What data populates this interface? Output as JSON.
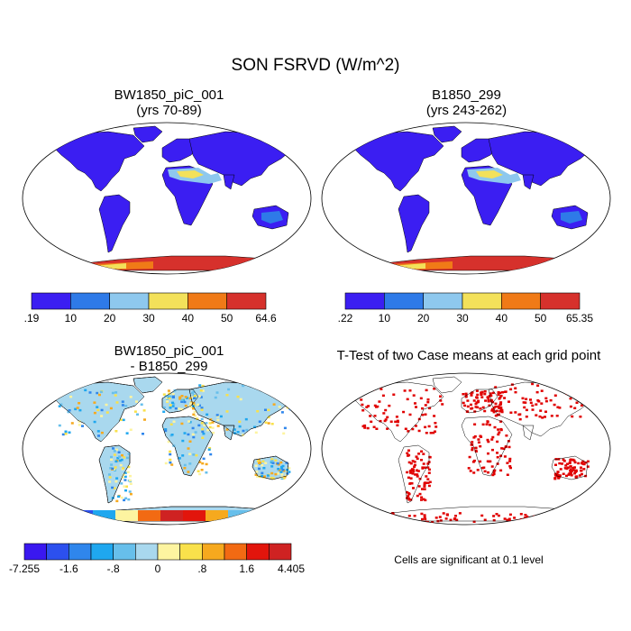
{
  "figure": {
    "title": "SON FSRVD (W/m^2)",
    "panels": [
      {
        "id": "case1",
        "title_line1": "BW1850_piC_001",
        "title_line2": "(yrs 70-89)",
        "colorbar": {
          "colors": [
            "#3b1ef2",
            "#2e7ae8",
            "#8ec8ee",
            "#f3e15a",
            "#f07a17",
            "#d6312c"
          ],
          "labels": [
            ".19",
            "10",
            "20",
            "30",
            "40",
            "50",
            "64.6"
          ]
        }
      },
      {
        "id": "case2",
        "title_line1": "B1850_299",
        "title_line2": "(yrs 243-262)",
        "colorbar": {
          "colors": [
            "#3b1ef2",
            "#2e7ae8",
            "#8ec8ee",
            "#f3e15a",
            "#f07a17",
            "#d6312c"
          ],
          "labels": [
            ".22",
            "10",
            "20",
            "30",
            "40",
            "50",
            "65.35"
          ]
        }
      },
      {
        "id": "diff",
        "title_line1": "BW1850_piC_001",
        "title_line2": "- B1850_299",
        "colorbar": {
          "colors": [
            "#3a18f0",
            "#2c50ee",
            "#2f86ec",
            "#1fa7ef",
            "#67bfeb",
            "#a9d8ee",
            "#fdf4a0",
            "#f9e14b",
            "#f6a91e",
            "#f26a13",
            "#e2150c",
            "#cf2222"
          ],
          "labels": [
            "-7.255",
            "-1.6",
            "-.8",
            "0",
            ".8",
            "1.6",
            "4.405"
          ]
        }
      },
      {
        "id": "ttest",
        "title_line1": "T-Test of two Case means at each grid point",
        "note": "Cells are significant at 0.1 level",
        "significant_color": "#e00000"
      }
    ]
  }
}
